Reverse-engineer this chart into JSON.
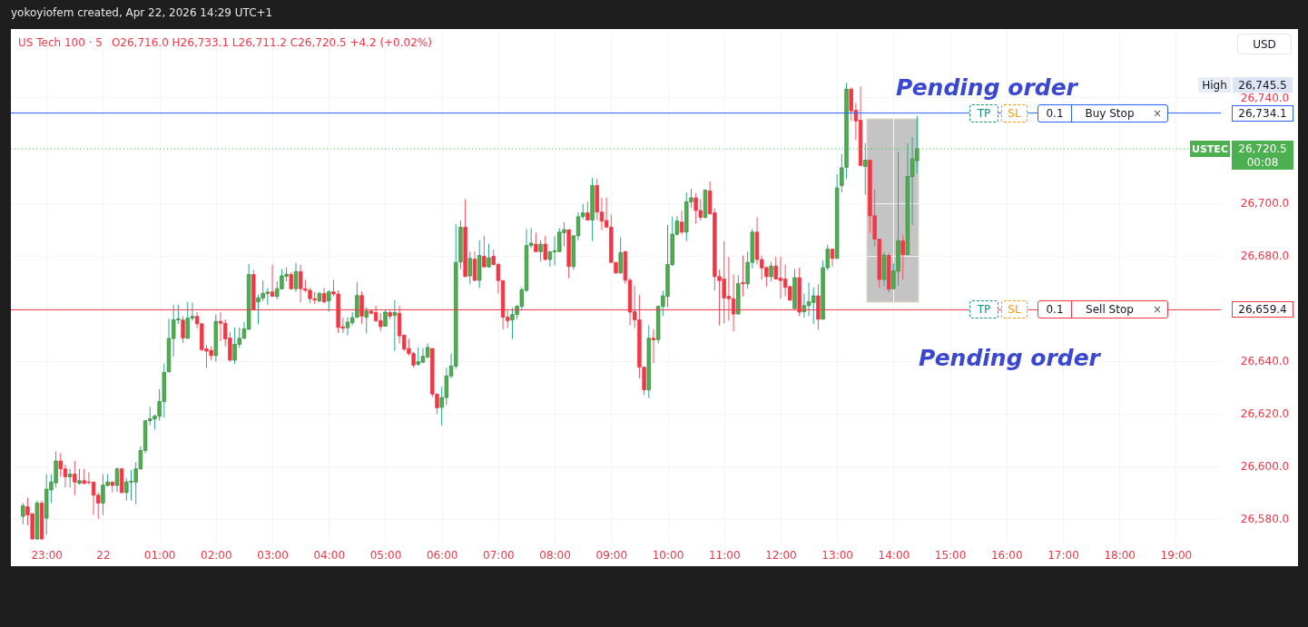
{
  "chart_data": {
    "type": "candlestick",
    "title": "US Tech 100 · 5",
    "annotations": [
      "yokoyiofem created, Apr 22, 2026 14:29 UTC+1",
      "O26,716.0 H26,733.1 L26,711.2 C26,720.5 +4.2 (+0.02%)",
      "USD",
      "Pending order",
      "Pending order",
      "TP",
      "SL",
      "0.1",
      "Buy Stop",
      "×",
      "TP",
      "SL",
      "0.1",
      "Sell Stop",
      "×",
      "High",
      "26,745.5",
      "USTEC",
      "00:08"
    ],
    "x": [
      "2026-04-21T22:35",
      "2026-04-21T22:40",
      "2026-04-21T22:45",
      "2026-04-21T22:50",
      "2026-04-21T22:55",
      "2026-04-21T23:00",
      "2026-04-21T23:05",
      "2026-04-21T23:10",
      "2026-04-21T23:15",
      "2026-04-21T23:20",
      "2026-04-21T23:25",
      "2026-04-21T23:30",
      "2026-04-21T23:35",
      "2026-04-21T23:40",
      "2026-04-21T23:45",
      "2026-04-21T23:50",
      "2026-04-21T23:55",
      "2026-04-22T00:00",
      "2026-04-22T00:05",
      "2026-04-22T00:10",
      "2026-04-22T00:15",
      "2026-04-22T00:20",
      "2026-04-22T00:25",
      "2026-04-22T00:30",
      "2026-04-22T00:35",
      "2026-04-22T00:40",
      "2026-04-22T00:45",
      "2026-04-22T00:50",
      "2026-04-22T00:55",
      "2026-04-22T01:00",
      "2026-04-22T01:05",
      "2026-04-22T01:10",
      "2026-04-22T01:15",
      "2026-04-22T01:20",
      "2026-04-22T01:25",
      "2026-04-22T01:30",
      "2026-04-22T01:35",
      "2026-04-22T01:40",
      "2026-04-22T01:45",
      "2026-04-22T01:50",
      "2026-04-22T01:55",
      "2026-04-22T02:00",
      "2026-04-22T02:05",
      "2026-04-22T02:10",
      "2026-04-22T02:15",
      "2026-04-22T02:20",
      "2026-04-22T02:25",
      "2026-04-22T02:30",
      "2026-04-22T02:35",
      "2026-04-22T02:40",
      "2026-04-22T02:45",
      "2026-04-22T02:50",
      "2026-04-22T02:55",
      "2026-04-22T03:00",
      "2026-04-22T03:05",
      "2026-04-22T03:10",
      "2026-04-22T03:15",
      "2026-04-22T03:20",
      "2026-04-22T03:25",
      "2026-04-22T03:30",
      "2026-04-22T03:35",
      "2026-04-22T03:40",
      "2026-04-22T03:45",
      "2026-04-22T03:50",
      "2026-04-22T03:55",
      "2026-04-22T04:00",
      "2026-04-22T04:05",
      "2026-04-22T04:10",
      "2026-04-22T04:15",
      "2026-04-22T04:20",
      "2026-04-22T04:25",
      "2026-04-22T04:30",
      "2026-04-22T04:35",
      "2026-04-22T04:40",
      "2026-04-22T04:45",
      "2026-04-22T04:50",
      "2026-04-22T04:55",
      "2026-04-22T05:00",
      "2026-04-22T05:05",
      "2026-04-22T05:10",
      "2026-04-22T05:15",
      "2026-04-22T05:20",
      "2026-04-22T05:25",
      "2026-04-22T05:30",
      "2026-04-22T05:35",
      "2026-04-22T05:40",
      "2026-04-22T05:45",
      "2026-04-22T05:50",
      "2026-04-22T05:55",
      "2026-04-22T06:00",
      "2026-04-22T06:05",
      "2026-04-22T06:10",
      "2026-04-22T06:15",
      "2026-04-22T06:20",
      "2026-04-22T06:25",
      "2026-04-22T06:30",
      "2026-04-22T06:35",
      "2026-04-22T06:40",
      "2026-04-22T06:45",
      "2026-04-22T06:50",
      "2026-04-22T06:55",
      "2026-04-22T07:00",
      "2026-04-22T07:05",
      "2026-04-22T07:10",
      "2026-04-22T07:15",
      "2026-04-22T07:20",
      "2026-04-22T07:25",
      "2026-04-22T07:30",
      "2026-04-22T07:35",
      "2026-04-22T07:40",
      "2026-04-22T07:45",
      "2026-04-22T07:50",
      "2026-04-22T07:55",
      "2026-04-22T08:00",
      "2026-04-22T08:05",
      "2026-04-22T08:10",
      "2026-04-22T08:15",
      "2026-04-22T08:20",
      "2026-04-22T08:25",
      "2026-04-22T08:30",
      "2026-04-22T08:35",
      "2026-04-22T08:40",
      "2026-04-22T08:45",
      "2026-04-22T08:50",
      "2026-04-22T08:55",
      "2026-04-22T09:00",
      "2026-04-22T09:05",
      "2026-04-22T09:10",
      "2026-04-22T09:15",
      "2026-04-22T09:20",
      "2026-04-22T09:25",
      "2026-04-22T09:30",
      "2026-04-22T09:35",
      "2026-04-22T09:40",
      "2026-04-22T09:45",
      "2026-04-22T09:50",
      "2026-04-22T09:55",
      "2026-04-22T10:00",
      "2026-04-22T10:05",
      "2026-04-22T10:10",
      "2026-04-22T10:15",
      "2026-04-22T10:20",
      "2026-04-22T10:25",
      "2026-04-22T10:30",
      "2026-04-22T10:35",
      "2026-04-22T10:40",
      "2026-04-22T10:45",
      "2026-04-22T10:50",
      "2026-04-22T10:55",
      "2026-04-22T11:00",
      "2026-04-22T11:05",
      "2026-04-22T11:10",
      "2026-04-22T11:15",
      "2026-04-22T11:20",
      "2026-04-22T11:25",
      "2026-04-22T11:30",
      "2026-04-22T11:35",
      "2026-04-22T11:40",
      "2026-04-22T11:45",
      "2026-04-22T11:50",
      "2026-04-22T11:55",
      "2026-04-22T12:00",
      "2026-04-22T12:05",
      "2026-04-22T12:10",
      "2026-04-22T12:15",
      "2026-04-22T12:20",
      "2026-04-22T12:25",
      "2026-04-22T12:30",
      "2026-04-22T12:35",
      "2026-04-22T12:40",
      "2026-04-22T12:45",
      "2026-04-22T12:50",
      "2026-04-22T12:55",
      "2026-04-22T13:00",
      "2026-04-22T13:05",
      "2026-04-22T13:10",
      "2026-04-22T13:15",
      "2026-04-22T13:20",
      "2026-04-22T13:25",
      "2026-04-22T13:30",
      "2026-04-22T13:35",
      "2026-04-22T13:40",
      "2026-04-22T13:45",
      "2026-04-22T13:50",
      "2026-04-22T13:55",
      "2026-04-22T14:00",
      "2026-04-22T14:05",
      "2026-04-22T14:10",
      "2026-04-22T14:15",
      "2026-04-22T14:20",
      "2026-04-22T14:25"
    ],
    "ohlc": [
      [
        26581,
        26586,
        26578,
        26585
      ],
      [
        26584.6,
        26588,
        26577.6,
        26581.5
      ],
      [
        26582,
        26582,
        26572,
        26572.4
      ],
      [
        26572.4,
        26587,
        26572,
        26586
      ],
      [
        26586,
        26587,
        26572,
        26572.4
      ],
      [
        26580.3,
        26597,
        26574,
        26591.3
      ],
      [
        26591,
        26597,
        26586,
        26594
      ],
      [
        26593.7,
        26605.6,
        26592,
        26602
      ],
      [
        26602,
        26605,
        26596,
        26599
      ],
      [
        26599,
        26600.6,
        26592,
        26596
      ],
      [
        26596,
        26599,
        26592,
        26597
      ],
      [
        26597,
        26602,
        26589,
        26594
      ],
      [
        26593.5,
        26599,
        26593,
        26594.5
      ],
      [
        26594.5,
        26599,
        26593,
        26593.5
      ],
      [
        26594,
        26597.7,
        26593,
        26593.8
      ],
      [
        26594,
        26594,
        26581.5,
        26589
      ],
      [
        26589,
        26590,
        26580,
        26586
      ],
      [
        26586,
        26597,
        26581.5,
        26592.8
      ],
      [
        26592.7,
        26597,
        26592.3,
        26594
      ],
      [
        26594,
        26594,
        26590,
        26592.7
      ],
      [
        26592.7,
        26599.5,
        26590.3,
        26599
      ],
      [
        26599,
        26599.5,
        26589.7,
        26590
      ],
      [
        26590,
        26595.6,
        26587,
        26594
      ],
      [
        26594,
        26598.6,
        26587,
        26594.3
      ],
      [
        26594,
        26601.6,
        26585.6,
        26599
      ],
      [
        26599,
        26607.6,
        26598.8,
        26606
      ],
      [
        26606,
        26617.3,
        26605,
        26617.3
      ],
      [
        26617.3,
        26622.5,
        26615.6,
        26618
      ],
      [
        26618,
        26619.6,
        26614,
        26619
      ],
      [
        26619,
        26629.3,
        26617.3,
        26624.6
      ],
      [
        26624.6,
        26639,
        26618.5,
        26635.6
      ],
      [
        26635.9,
        26656,
        26635.5,
        26648.5
      ],
      [
        26648.5,
        26661.3,
        26641.6,
        26655.6
      ],
      [
        26655.6,
        26661.3,
        26654,
        26656
      ],
      [
        26655.5,
        26657,
        26646.8,
        26648.7
      ],
      [
        26648.6,
        26662.4,
        26648.4,
        26656.2
      ],
      [
        26656.2,
        26662.2,
        26655.3,
        26656.9
      ],
      [
        26656.9,
        26658.5,
        26652.4,
        26654.1
      ],
      [
        26654.1,
        26654.1,
        26643.7,
        26644.3
      ],
      [
        26644.6,
        26646,
        26637.4,
        26643.7
      ],
      [
        26644,
        26645.5,
        26640.3,
        26642
      ],
      [
        26642,
        26657.6,
        26639.7,
        26655
      ],
      [
        26655,
        26658.5,
        26647.4,
        26654.3
      ],
      [
        26654.3,
        26655.8,
        26645.5,
        26648.3
      ],
      [
        26648.7,
        26650.9,
        26639.7,
        26640.3
      ],
      [
        26640.3,
        26652.7,
        26638.9,
        26646.3
      ],
      [
        26646.3,
        26652.7,
        26644.9,
        26648.6
      ],
      [
        26648.6,
        26654.7,
        26648.3,
        26652.1
      ],
      [
        26652,
        26676.8,
        26651.8,
        26672.8
      ],
      [
        26672.8,
        26674.5,
        26659.3,
        26659.5
      ],
      [
        26662.4,
        26665.1,
        26653.9,
        26663.9
      ],
      [
        26663.9,
        26670.5,
        26662.7,
        26665.6
      ],
      [
        26665.6,
        26667.7,
        26661.2,
        26666.1
      ],
      [
        26666.2,
        26676.5,
        26664.5,
        26664.5
      ],
      [
        26664.5,
        26670.2,
        26663.3,
        26667.4
      ],
      [
        26667.4,
        26674.9,
        26667.1,
        26672.3
      ],
      [
        26672.1,
        26675.4,
        26670.2,
        26672.9
      ],
      [
        26672.8,
        26673.7,
        26667,
        26667.4
      ],
      [
        26667.4,
        26677.2,
        26666.2,
        26673.9
      ],
      [
        26673.9,
        26676.5,
        26662.2,
        26667.4
      ],
      [
        26667.4,
        26670.8,
        26666.2,
        26666.8
      ],
      [
        26666.8,
        26667.7,
        26661.9,
        26663.6
      ],
      [
        26663.6,
        26666.2,
        26661.6,
        26663.1
      ],
      [
        26662.8,
        26666.2,
        26662.2,
        26665.6
      ],
      [
        26665.6,
        26667.7,
        26661.9,
        26662.4
      ],
      [
        26662.8,
        26666.8,
        26658.7,
        26666.2
      ],
      [
        26666.2,
        26670.8,
        26664.5,
        26665.4
      ],
      [
        26665.4,
        26666.8,
        26650.6,
        26652.7
      ],
      [
        26652.9,
        26656.4,
        26650.6,
        26652.4
      ],
      [
        26652.6,
        26656.6,
        26649.7,
        26654.7
      ],
      [
        26654.5,
        26658.5,
        26653.5,
        26656.4
      ],
      [
        26656.6,
        26669.9,
        26656.2,
        26664.8
      ],
      [
        26664.8,
        26666.4,
        26654.1,
        26657
      ],
      [
        26656.6,
        26660.4,
        26650.4,
        26658.9
      ],
      [
        26658.9,
        26659.3,
        26657.6,
        26658.1
      ],
      [
        26658.4,
        26661,
        26654.7,
        26655.3
      ],
      [
        26655.3,
        26658.1,
        26651.2,
        26653
      ],
      [
        26653.2,
        26659.3,
        26653,
        26658.5
      ],
      [
        26658.4,
        26659,
        26655.8,
        26657
      ],
      [
        26657.3,
        26663,
        26643.7,
        26658.4
      ],
      [
        26658.1,
        26661,
        26646.6,
        26649.5
      ],
      [
        26649.8,
        26649.8,
        26643.7,
        26644.5
      ],
      [
        26644.7,
        26648.4,
        26642,
        26642.8
      ],
      [
        26642.8,
        26643.5,
        26637.4,
        26638.4
      ],
      [
        26638.7,
        26645.1,
        26638.2,
        26639.7
      ],
      [
        26639.5,
        26644.9,
        26639.1,
        26641.7
      ],
      [
        26641.4,
        26646.6,
        26641.2,
        26645.1
      ],
      [
        26644.7,
        26644.7,
        26626.2,
        26627.4
      ],
      [
        26627.4,
        26627.4,
        26619.9,
        26622.2
      ],
      [
        26622.4,
        26630.1,
        26615.5,
        26626.1
      ],
      [
        26626.1,
        26637.4,
        26623.2,
        26634.3
      ],
      [
        26634.3,
        26642.8,
        26633.4,
        26638
      ],
      [
        26638,
        26691.9,
        26637,
        26677.4
      ],
      [
        26677.6,
        26693.3,
        26674.8,
        26690.7
      ],
      [
        26690.8,
        26701.4,
        26672,
        26672
      ],
      [
        26672.3,
        26681.5,
        26669.1,
        26678.9
      ],
      [
        26678.6,
        26681.5,
        26670.2,
        26670.6
      ],
      [
        26670.6,
        26685.8,
        26667.7,
        26680
      ],
      [
        26679.7,
        26687.5,
        26675.4,
        26675.7
      ],
      [
        26675.7,
        26684.4,
        26675.4,
        26679.1
      ],
      [
        26679.7,
        26682.3,
        26676.2,
        26676.6
      ],
      [
        26676.6,
        26677.2,
        26665.6,
        26670.5
      ],
      [
        26670.5,
        26670.5,
        26652,
        26656.6
      ],
      [
        26656.6,
        26659.3,
        26652.4,
        26655.3
      ],
      [
        26655.6,
        26660.1,
        26648.3,
        26657.6
      ],
      [
        26657.6,
        26661.3,
        26655.8,
        26660.7
      ],
      [
        26660.7,
        26667.9,
        26659.1,
        26667
      ],
      [
        26666.8,
        26690.1,
        26666.2,
        26683.8
      ],
      [
        26683.8,
        26690.4,
        26682.9,
        26684.7
      ],
      [
        26684.3,
        26688.7,
        26681.5,
        26681.5
      ],
      [
        26681.5,
        26685.8,
        26677.7,
        26684.3
      ],
      [
        26684.3,
        26687.5,
        26678.1,
        26678.5
      ],
      [
        26678.5,
        26681.8,
        26675.8,
        26681.4
      ],
      [
        26681.4,
        26687.3,
        26676.2,
        26681.8
      ],
      [
        26681.5,
        26690.4,
        26681.2,
        26688.9
      ],
      [
        26688.7,
        26692.7,
        26683.5,
        26689.8
      ],
      [
        26689.8,
        26689.8,
        26671.4,
        26675.8
      ],
      [
        26675.8,
        26687.5,
        26674.6,
        26687.5
      ],
      [
        26687.5,
        26696.5,
        26685.8,
        26694.7
      ],
      [
        26694.8,
        26699.6,
        26693.9,
        26696.2
      ],
      [
        26696.2,
        26700.4,
        26693.3,
        26693.5
      ],
      [
        26693.5,
        26709.4,
        26685.5,
        26706.6
      ],
      [
        26706.6,
        26709.2,
        26693.5,
        26696.5
      ],
      [
        26696.5,
        26701.9,
        26689.6,
        26693.1
      ],
      [
        26693.3,
        26701.9,
        26690.4,
        26690.8
      ],
      [
        26690.8,
        26695.6,
        26677.2,
        26677.4
      ],
      [
        26677.4,
        26677.4,
        26673.1,
        26673.4
      ],
      [
        26673.4,
        26687,
        26673.1,
        26681.1
      ],
      [
        26681.4,
        26681.8,
        26669.3,
        26670.6
      ],
      [
        26670.6,
        26671.4,
        26653.5,
        26658.5
      ],
      [
        26658.7,
        26668.5,
        26652.4,
        26655.6
      ],
      [
        26655.6,
        26665.1,
        26633.4,
        26637.6
      ],
      [
        26637.6,
        26637.6,
        26627,
        26629
      ],
      [
        26629,
        26653.5,
        26625.9,
        26648.6
      ],
      [
        26648.6,
        26652,
        26639.1,
        26648
      ],
      [
        26648.1,
        26661,
        26646.6,
        26660.7
      ],
      [
        26660.7,
        26666.6,
        26657,
        26664.7
      ],
      [
        26664.5,
        26691.6,
        26660.4,
        26676.6
      ],
      [
        26676.6,
        26694.7,
        26676,
        26688.1
      ],
      [
        26688.1,
        26695,
        26687.5,
        26693.1
      ],
      [
        26692.7,
        26697,
        26688,
        26688.9
      ],
      [
        26688.9,
        26703.9,
        26685.5,
        26700.4
      ],
      [
        26700.4,
        26705.4,
        26698.1,
        26701.9
      ],
      [
        26701.9,
        26703.7,
        26692.1,
        26697.1
      ],
      [
        26697.1,
        26701.4,
        26693.3,
        26694.5
      ],
      [
        26694.5,
        26705.1,
        26694.2,
        26704.8
      ],
      [
        26704.5,
        26708.1,
        26695.8,
        26695.8
      ],
      [
        26696.2,
        26697.9,
        26666.8,
        26672
      ],
      [
        26672,
        26674.6,
        26653.5,
        26670.5
      ],
      [
        26671.1,
        26685.5,
        26654.3,
        26663.9
      ],
      [
        26664.5,
        26679.5,
        26655.3,
        26663.6
      ],
      [
        26663.6,
        26672.8,
        26651.2,
        26657.8
      ],
      [
        26657.8,
        26672.5,
        26657.6,
        26669.3
      ],
      [
        26669.7,
        26680,
        26664.5,
        26669.3
      ],
      [
        26669.3,
        26681.5,
        26667.4,
        26677.4
      ],
      [
        26677.4,
        26690.1,
        26675.1,
        26688.9
      ],
      [
        26688.9,
        26694.5,
        26676.6,
        26678.5
      ],
      [
        26678.5,
        26680,
        26670.8,
        26675.3
      ],
      [
        26675.4,
        26676,
        26668.2,
        26672
      ],
      [
        26672,
        26677.7,
        26670.2,
        26676
      ],
      [
        26676,
        26679.5,
        26670.8,
        26671.1
      ],
      [
        26671.4,
        26679.5,
        26663.6,
        26670.5
      ],
      [
        26671.1,
        26676.6,
        26664.5,
        26667.9
      ],
      [
        26668.2,
        26668.5,
        26662.8,
        26663.1
      ],
      [
        26659.9,
        26674.9,
        26659.6,
        26671.6
      ],
      [
        26671.6,
        26675.4,
        26657,
        26658.5
      ],
      [
        26658.7,
        26665.6,
        26656.4,
        26661
      ],
      [
        26661,
        26669.7,
        26657,
        26662.4
      ],
      [
        26662.2,
        26667.9,
        26654.1,
        26664.7
      ],
      [
        26664.7,
        26669.1,
        26651.8,
        26655.8
      ],
      [
        26655.8,
        26678.1,
        26655.8,
        26675.4
      ],
      [
        26675.4,
        26684.1,
        26674.3,
        26682.4
      ],
      [
        26682.4,
        26682.4,
        26675.8,
        26678.9
      ],
      [
        26678.9,
        26710.8,
        26678.9,
        26705.7
      ],
      [
        26706.6,
        26718.5,
        26704,
        26713.3
      ],
      [
        26713.5,
        26745.5,
        26709.2,
        26743.2
      ],
      [
        26743.2,
        26743.8,
        26731.1,
        26734.9
      ],
      [
        26735.2,
        26738,
        26723.9,
        26731.1
      ],
      [
        26731.4,
        26744.2,
        26714.2,
        26714.2
      ],
      [
        26713.8,
        26722.7,
        26703.1,
        26716.2
      ],
      [
        26716.2,
        26716.2,
        26688.5,
        26695.1
      ],
      [
        26695.1,
        26705.2,
        26683.5,
        26686.2
      ],
      [
        26686.2,
        26686.2,
        26667.7,
        26670.9
      ],
      [
        26670.9,
        26681.2,
        26668.3,
        26680.1
      ],
      [
        26680.1,
        26681,
        26666,
        26667.2
      ],
      [
        26667.4,
        26677,
        26667.4,
        26674.1
      ],
      [
        26674.1,
        26719.3,
        26668.5,
        26685.6
      ],
      [
        26685.6,
        26687.9,
        26670.9,
        26680.4
      ],
      [
        26680.4,
        26722.7,
        26680.1,
        26710
      ],
      [
        26710,
        26725,
        26691.6,
        26716.7
      ],
      [
        26716.0,
        26733.1,
        26711.2,
        26720.5
      ]
    ],
    "xlim": [
      "2026-04-21T22:27",
      "2026-04-22T19:43"
    ],
    "xticks": [
      {
        "value": "2026-04-21T23:00",
        "label": "23:00"
      },
      {
        "value": "2026-04-22T00:00",
        "label": "22"
      },
      {
        "value": "2026-04-22T01:00",
        "label": "01:00"
      },
      {
        "value": "2026-04-22T02:00",
        "label": "02:00"
      },
      {
        "value": "2026-04-22T03:00",
        "label": "03:00"
      },
      {
        "value": "2026-04-22T04:00",
        "label": "04:00"
      },
      {
        "value": "2026-04-22T05:00",
        "label": "05:00"
      },
      {
        "value": "2026-04-22T06:00",
        "label": "06:00"
      },
      {
        "value": "2026-04-22T07:00",
        "label": "07:00"
      },
      {
        "value": "2026-04-22T08:00",
        "label": "08:00"
      },
      {
        "value": "2026-04-22T09:00",
        "label": "09:00"
      },
      {
        "value": "2026-04-22T10:00",
        "label": "10:00"
      },
      {
        "value": "2026-04-22T11:00",
        "label": "11:00"
      },
      {
        "value": "2026-04-22T12:00",
        "label": "12:00"
      },
      {
        "value": "2026-04-22T13:00",
        "label": "13:00"
      },
      {
        "value": "2026-04-22T14:00",
        "label": "14:00"
      },
      {
        "value": "2026-04-22T15:00",
        "label": "15:00"
      },
      {
        "value": "2026-04-22T16:00",
        "label": "16:00"
      },
      {
        "value": "2026-04-22T17:00",
        "label": "17:00"
      },
      {
        "value": "2026-04-22T18:00",
        "label": "18:00"
      },
      {
        "value": "2026-04-22T19:00",
        "label": "19:00"
      }
    ],
    "ylim": [
      26571,
      26766
    ],
    "yticks": [
      {
        "value": 26580,
        "label": "26,580.0"
      },
      {
        "value": 26600,
        "label": "26,600.0"
      },
      {
        "value": 26620,
        "label": "26,620.0"
      },
      {
        "value": 26640,
        "label": "26,640.0"
      },
      {
        "value": 26680,
        "label": "26,680.0"
      },
      {
        "value": 26700,
        "label": "26,700.0"
      },
      {
        "value": 26740,
        "label": "26,740.0"
      }
    ],
    "ref_lines": [
      {
        "axis": "y",
        "value": 26734.1,
        "label": "26,734.1",
        "color": "#2962ff",
        "line_style": "solid"
      },
      {
        "axis": "y",
        "value": 26659.4,
        "label": "26,659.4",
        "color": "#f23645",
        "line_style": "solid"
      },
      {
        "axis": "y",
        "value": 26720.5,
        "label": "26,720.5",
        "color": "#4caf50",
        "line_style": "dotted"
      }
    ],
    "grid": true
  }
}
